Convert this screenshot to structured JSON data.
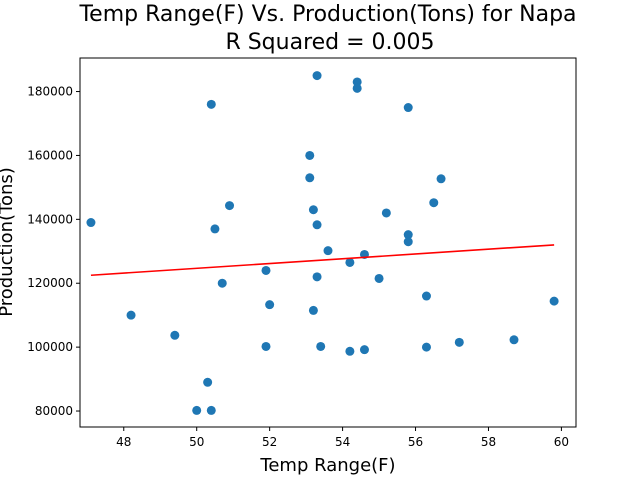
{
  "chart_data": {
    "type": "scatter",
    "title_line1": "Temp Range(F) Vs. Production(Tons) for Napa",
    "title_line2": "R Squared =  0.005",
    "xlabel": "Temp Range(F)",
    "ylabel": "Production(Tons)",
    "xlim": [
      46.8,
      60.4
    ],
    "ylim": [
      75000,
      190500
    ],
    "xticks": [
      48,
      50,
      52,
      54,
      56,
      58,
      60
    ],
    "yticks": [
      80000,
      100000,
      120000,
      140000,
      160000,
      180000
    ],
    "grid": false,
    "points": [
      {
        "x": 47.1,
        "y": 139000
      },
      {
        "x": 48.2,
        "y": 110000
      },
      {
        "x": 49.4,
        "y": 103700
      },
      {
        "x": 50.0,
        "y": 80200
      },
      {
        "x": 50.3,
        "y": 89000
      },
      {
        "x": 50.4,
        "y": 80200
      },
      {
        "x": 50.4,
        "y": 176000
      },
      {
        "x": 50.5,
        "y": 137000
      },
      {
        "x": 50.7,
        "y": 120000
      },
      {
        "x": 50.9,
        "y": 144300
      },
      {
        "x": 51.9,
        "y": 124000
      },
      {
        "x": 51.9,
        "y": 100200
      },
      {
        "x": 52.0,
        "y": 113300
      },
      {
        "x": 53.1,
        "y": 160000
      },
      {
        "x": 53.1,
        "y": 153000
      },
      {
        "x": 53.2,
        "y": 143000
      },
      {
        "x": 53.2,
        "y": 111500
      },
      {
        "x": 53.3,
        "y": 185000
      },
      {
        "x": 53.3,
        "y": 138300
      },
      {
        "x": 53.3,
        "y": 122000
      },
      {
        "x": 53.4,
        "y": 100200
      },
      {
        "x": 53.6,
        "y": 130200
      },
      {
        "x": 54.2,
        "y": 126500
      },
      {
        "x": 54.2,
        "y": 98700
      },
      {
        "x": 54.4,
        "y": 183000
      },
      {
        "x": 54.4,
        "y": 181000
      },
      {
        "x": 54.6,
        "y": 129000
      },
      {
        "x": 54.6,
        "y": 99200
      },
      {
        "x": 55.0,
        "y": 121500
      },
      {
        "x": 55.2,
        "y": 142000
      },
      {
        "x": 55.8,
        "y": 175000
      },
      {
        "x": 55.8,
        "y": 135200
      },
      {
        "x": 55.8,
        "y": 133000
      },
      {
        "x": 56.3,
        "y": 116000
      },
      {
        "x": 56.3,
        "y": 100000
      },
      {
        "x": 56.5,
        "y": 145200
      },
      {
        "x": 56.7,
        "y": 152700
      },
      {
        "x": 57.2,
        "y": 101500
      },
      {
        "x": 58.7,
        "y": 102300
      },
      {
        "x": 59.8,
        "y": 114400
      }
    ],
    "regression_line": {
      "x": [
        47.1,
        59.8
      ],
      "y": [
        122500,
        132000
      ]
    },
    "point_color": "#1f77b4",
    "line_color": "#ff0000"
  }
}
